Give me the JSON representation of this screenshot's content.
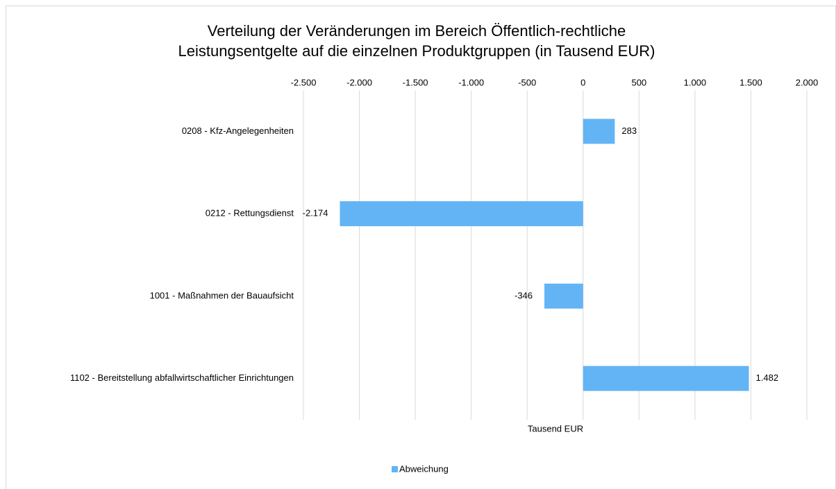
{
  "chart_data": {
    "type": "bar",
    "orientation": "horizontal",
    "title": [
      "Verteilung der Veränderungen im Bereich Öffentlich-rechtliche",
      "Leistungsentgelte auf die einzelnen Produktgruppen (in Tausend EUR)"
    ],
    "categories": [
      "0208 - Kfz-Angelegenheiten",
      "0212 - Rettungsdienst",
      "1001 - Maßnahmen der Bauaufsicht",
      "1102 - Bereitstellung abfallwirtschaftlicher Einrichtungen"
    ],
    "series": [
      {
        "name": "Abweichung",
        "color": "#63b4f5",
        "values": [
          283,
          -2174,
          -346,
          1482
        ],
        "value_labels": [
          "283",
          "-2.174",
          "-346",
          "1.482"
        ]
      }
    ],
    "xlim": [
      -2500,
      2000
    ],
    "xticks": [
      {
        "value": -2500,
        "label": "-2.500"
      },
      {
        "value": -2000,
        "label": "-2.000"
      },
      {
        "value": -1500,
        "label": "-1.500"
      },
      {
        "value": -1000,
        "label": "-1.000"
      },
      -500,
      0,
      500,
      {
        "value": 1000,
        "label": "1.000"
      },
      {
        "value": 1500,
        "label": "1.500"
      },
      {
        "value": 2000,
        "label": "2.000"
      }
    ],
    "xlabel": "Tausend EUR",
    "grid": true,
    "legend": "bottom"
  }
}
